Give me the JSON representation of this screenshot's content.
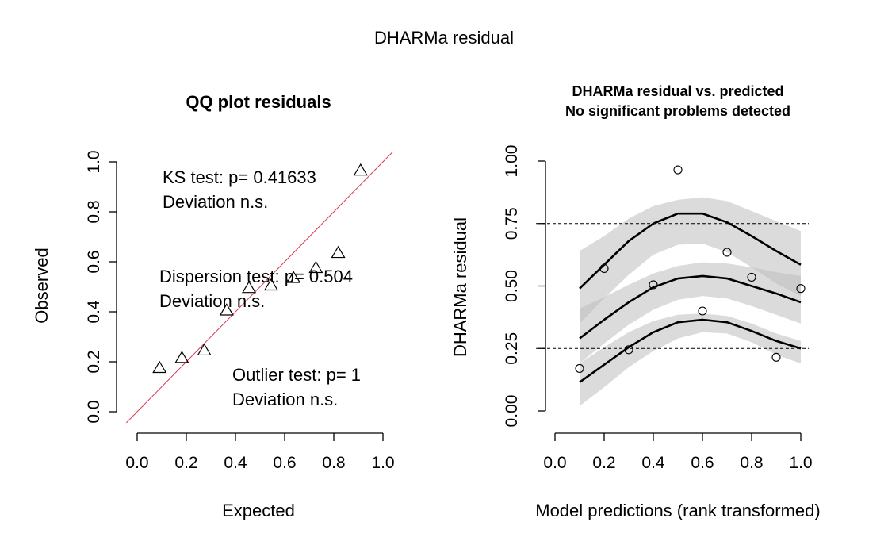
{
  "figure": {
    "title": "DHARMa residual"
  },
  "chart_data": [
    {
      "type": "scatter",
      "title": "QQ plot residuals",
      "xlabel": "Expected",
      "ylabel": "Observed",
      "xlim": [
        0,
        1
      ],
      "ylim": [
        0,
        1
      ],
      "x_ticks": [
        "0.0",
        "0.2",
        "0.4",
        "0.6",
        "0.8",
        "1.0"
      ],
      "y_ticks": [
        "0.0",
        "0.2",
        "0.4",
        "0.6",
        "0.8",
        "1.0"
      ],
      "reference_line": {
        "from": [
          0,
          0
        ],
        "to": [
          1,
          1
        ],
        "color": "#d9394d"
      },
      "marker": "triangle",
      "points": [
        {
          "x": 0.091,
          "y": 0.175
        },
        {
          "x": 0.182,
          "y": 0.215
        },
        {
          "x": 0.273,
          "y": 0.245
        },
        {
          "x": 0.364,
          "y": 0.405
        },
        {
          "x": 0.455,
          "y": 0.495
        },
        {
          "x": 0.545,
          "y": 0.505
        },
        {
          "x": 0.636,
          "y": 0.535
        },
        {
          "x": 0.727,
          "y": 0.575
        },
        {
          "x": 0.818,
          "y": 0.635
        },
        {
          "x": 0.909,
          "y": 0.965
        }
      ],
      "annotations": [
        {
          "line1": "KS test: p= 0.41633",
          "line2": "Deviation  n.s."
        },
        {
          "line1": "Dispersion test: p= 0.504",
          "line2": "Deviation  n.s."
        },
        {
          "line1": "Outlier test: p= 1",
          "line2": "Deviation  n.s."
        }
      ]
    },
    {
      "type": "scatter",
      "title": "DHARMa residual vs. predicted",
      "subtitle": "No significant problems detected",
      "xlabel": "Model predictions (rank transformed)",
      "ylabel": "DHARMa residual",
      "xlim": [
        0.1,
        1.0
      ],
      "ylim": [
        0,
        1
      ],
      "x_ticks": [
        "0.0",
        "0.2",
        "0.4",
        "0.6",
        "0.8",
        "1.0"
      ],
      "y_ticks": [
        "0.00",
        "0.25",
        "0.50",
        "0.75",
        "1.00"
      ],
      "reference_lines": [
        0.25,
        0.5,
        0.75
      ],
      "marker": "circle",
      "points": [
        {
          "x": 0.1,
          "y": 0.17
        },
        {
          "x": 0.2,
          "y": 0.57
        },
        {
          "x": 0.3,
          "y": 0.245
        },
        {
          "x": 0.4,
          "y": 0.505
        },
        {
          "x": 0.5,
          "y": 0.965
        },
        {
          "x": 0.6,
          "y": 0.4
        },
        {
          "x": 0.7,
          "y": 0.635
        },
        {
          "x": 0.8,
          "y": 0.535
        },
        {
          "x": 0.9,
          "y": 0.215
        },
        {
          "x": 1.0,
          "y": 0.49
        }
      ],
      "quantile_curves": [
        {
          "x": [
            0.1,
            0.2,
            0.3,
            0.4,
            0.5,
            0.6,
            0.7,
            0.8,
            0.9,
            1.0
          ],
          "y": [
            0.115,
            0.185,
            0.255,
            0.315,
            0.355,
            0.365,
            0.355,
            0.32,
            0.28,
            0.25
          ],
          "band_upper": [
            0.19,
            0.255,
            0.315,
            0.36,
            0.385,
            0.39,
            0.38,
            0.35,
            0.31,
            0.28
          ],
          "band_lower": [
            0.02,
            0.095,
            0.175,
            0.24,
            0.29,
            0.315,
            0.31,
            0.275,
            0.225,
            0.19
          ]
        },
        {
          "x": [
            0.1,
            0.2,
            0.3,
            0.4,
            0.5,
            0.6,
            0.7,
            0.8,
            0.9,
            1.0
          ],
          "y": [
            0.29,
            0.365,
            0.435,
            0.495,
            0.53,
            0.54,
            0.53,
            0.5,
            0.47,
            0.435
          ],
          "band_upper": [
            0.41,
            0.455,
            0.505,
            0.55,
            0.58,
            0.595,
            0.59,
            0.575,
            0.555,
            0.54
          ],
          "band_lower": [
            0.19,
            0.27,
            0.345,
            0.405,
            0.445,
            0.46,
            0.45,
            0.42,
            0.385,
            0.35
          ]
        },
        {
          "x": [
            0.1,
            0.2,
            0.3,
            0.4,
            0.5,
            0.6,
            0.7,
            0.8,
            0.9,
            1.0
          ],
          "y": [
            0.49,
            0.585,
            0.68,
            0.75,
            0.79,
            0.79,
            0.755,
            0.7,
            0.64,
            0.585
          ],
          "band_upper": [
            0.64,
            0.7,
            0.77,
            0.82,
            0.845,
            0.855,
            0.84,
            0.8,
            0.76,
            0.72
          ],
          "band_lower": [
            0.35,
            0.45,
            0.545,
            0.625,
            0.665,
            0.67,
            0.635,
            0.575,
            0.51,
            0.46
          ]
        }
      ]
    }
  ]
}
